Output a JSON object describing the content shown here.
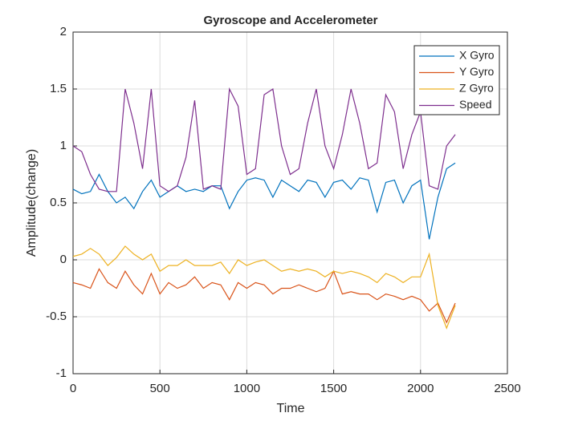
{
  "chart_data": {
    "type": "line",
    "title": "Gyroscope and Accelerometer",
    "x_label": "Time",
    "y_label": "Amplitude(change)",
    "x": [
      0,
      50,
      100,
      150,
      200,
      250,
      300,
      350,
      400,
      450,
      500,
      550,
      600,
      650,
      700,
      750,
      800,
      850,
      900,
      950,
      1000,
      1050,
      1100,
      1150,
      1200,
      1250,
      1300,
      1350,
      1400,
      1450,
      1500,
      1550,
      1600,
      1650,
      1700,
      1750,
      1800,
      1850,
      1900,
      1950,
      2000,
      2050,
      2100,
      2150,
      2200
    ],
    "series": [
      {
        "name": "X Gyro",
        "color": "#0072BD",
        "values": [
          0.62,
          0.58,
          0.6,
          0.75,
          0.6,
          0.5,
          0.55,
          0.45,
          0.6,
          0.7,
          0.55,
          0.6,
          0.65,
          0.6,
          0.62,
          0.6,
          0.65,
          0.65,
          0.45,
          0.6,
          0.7,
          0.72,
          0.7,
          0.55,
          0.7,
          0.65,
          0.6,
          0.7,
          0.68,
          0.55,
          0.68,
          0.7,
          0.62,
          0.72,
          0.7,
          0.42,
          0.68,
          0.7,
          0.5,
          0.65,
          0.7,
          0.18,
          0.55,
          0.8,
          0.85
        ]
      },
      {
        "name": "Y Gyro",
        "color": "#D95319",
        "values": [
          -0.2,
          -0.22,
          -0.25,
          -0.08,
          -0.2,
          -0.25,
          -0.1,
          -0.22,
          -0.3,
          -0.12,
          -0.3,
          -0.2,
          -0.25,
          -0.22,
          -0.15,
          -0.25,
          -0.2,
          -0.22,
          -0.35,
          -0.2,
          -0.25,
          -0.2,
          -0.22,
          -0.3,
          -0.25,
          -0.25,
          -0.22,
          -0.25,
          -0.28,
          -0.25,
          -0.1,
          -0.3,
          -0.28,
          -0.3,
          -0.3,
          -0.35,
          -0.3,
          -0.32,
          -0.35,
          -0.32,
          -0.35,
          -0.45,
          -0.38,
          -0.55,
          -0.38
        ]
      },
      {
        "name": "Z Gyro",
        "color": "#EDB120",
        "values": [
          0.03,
          0.05,
          0.1,
          0.05,
          -0.05,
          0.02,
          0.12,
          0.05,
          0.0,
          0.05,
          -0.1,
          -0.05,
          -0.05,
          0.0,
          -0.05,
          -0.05,
          -0.05,
          -0.02,
          -0.12,
          0.0,
          -0.05,
          -0.02,
          0.0,
          -0.05,
          -0.1,
          -0.08,
          -0.1,
          -0.08,
          -0.1,
          -0.15,
          -0.1,
          -0.12,
          -0.1,
          -0.12,
          -0.15,
          -0.2,
          -0.12,
          -0.15,
          -0.2,
          -0.15,
          -0.15,
          0.05,
          -0.4,
          -0.6,
          -0.4
        ]
      },
      {
        "name": "Speed",
        "color": "#7E2F8E",
        "values": [
          1.0,
          0.95,
          0.75,
          0.62,
          0.6,
          0.6,
          1.5,
          1.2,
          0.8,
          1.5,
          0.65,
          0.6,
          0.65,
          0.9,
          1.4,
          0.62,
          0.65,
          0.62,
          1.5,
          1.35,
          0.75,
          0.8,
          1.45,
          1.5,
          1.0,
          0.75,
          0.8,
          1.2,
          1.5,
          1.0,
          0.8,
          1.1,
          1.5,
          1.2,
          0.8,
          0.85,
          1.45,
          1.3,
          0.8,
          1.1,
          1.3,
          0.65,
          0.62,
          1.0,
          1.1
        ]
      }
    ],
    "xlim": [
      0,
      2500
    ],
    "xticks": [
      0,
      500,
      1000,
      1500,
      2000,
      2500
    ],
    "ylim": [
      -1,
      2
    ],
    "yticks": [
      -1,
      -0.5,
      0,
      0.5,
      1,
      1.5,
      2
    ],
    "grid": true,
    "legend": "northeast"
  }
}
